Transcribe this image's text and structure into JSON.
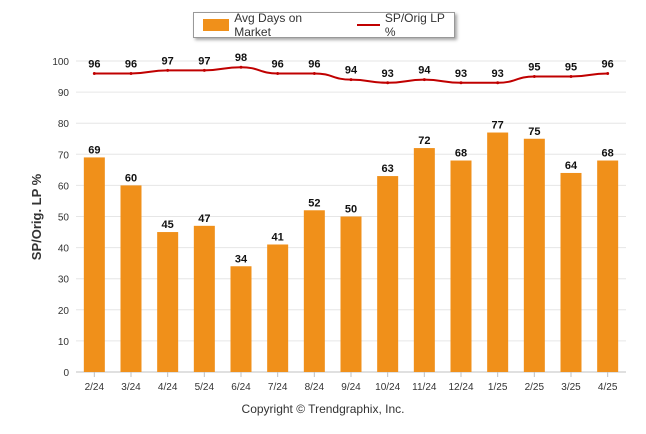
{
  "chart_data": {
    "type": "bar",
    "categories": [
      "2/24",
      "3/24",
      "4/24",
      "5/24",
      "6/24",
      "7/24",
      "8/24",
      "9/24",
      "10/24",
      "11/24",
      "12/24",
      "1/25",
      "2/25",
      "3/25",
      "4/25"
    ],
    "series": [
      {
        "name": "Avg Days on Market",
        "type": "bar",
        "color": "#f0901a",
        "values": [
          69,
          60,
          45,
          47,
          34,
          41,
          52,
          50,
          63,
          72,
          68,
          77,
          75,
          64,
          68
        ]
      },
      {
        "name": "SP/Orig LP %",
        "type": "line",
        "color": "#c00000",
        "values": [
          96,
          96,
          97,
          97,
          98,
          96,
          96,
          94,
          93,
          94,
          93,
          93,
          95,
          95,
          96
        ]
      }
    ],
    "ylabel": "SP/Orig. LP %",
    "ylim": [
      0,
      100
    ],
    "yticks": [
      0,
      10,
      20,
      30,
      40,
      50,
      60,
      70,
      80,
      90,
      100
    ],
    "grid": true,
    "legend": "top-center"
  },
  "footer": {
    "copyright": "Copyright © Trendgraphix, Inc."
  }
}
